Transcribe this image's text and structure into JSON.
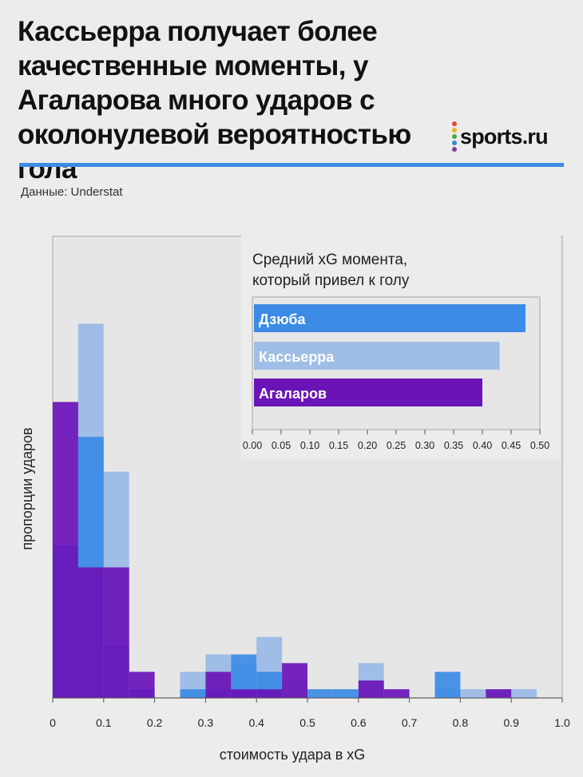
{
  "header": {
    "title": "Кассьерра получает более качественные моменты, у Агаларова много ударов с околонулевой вероятностью гола",
    "logo_text": "sports.ru",
    "logo_colors": [
      "#e8433a",
      "#f2b01e",
      "#3fae49",
      "#2a8ad6",
      "#7c3ea0"
    ],
    "source": "Данные: Understat"
  },
  "colors": {
    "dzyuba": "#3c8be6",
    "kasserra": "#9fbde6",
    "agalarov": "#6a14b8",
    "rule": "#3c8be6"
  },
  "chart_data": [
    {
      "type": "bar",
      "subtype": "overlapping-histogram",
      "xlabel": "стоимость удара в xG",
      "ylabel": "пропорции ударов",
      "xlim": [
        0,
        1.0
      ],
      "bin_width": 0.05,
      "x_ticks": [
        "0",
        "0.1",
        "0.2",
        "0.3",
        "0.4",
        "0.5",
        "0.6",
        "0.7",
        "0.8",
        "0.9",
        "1.0"
      ],
      "series": [
        {
          "name": "Кассьерра",
          "color": "#9fbde6",
          "bins": [
            [
              0.0,
              0.1
            ],
            [
              0.05,
              0.86
            ],
            [
              0.1,
              0.52
            ],
            [
              0.15,
              0.0
            ],
            [
              0.2,
              0.0
            ],
            [
              0.25,
              0.06
            ],
            [
              0.3,
              0.1
            ],
            [
              0.35,
              0.08
            ],
            [
              0.4,
              0.14
            ],
            [
              0.45,
              0.04
            ],
            [
              0.5,
              0.0
            ],
            [
              0.55,
              0.0
            ],
            [
              0.6,
              0.08
            ],
            [
              0.65,
              0.0
            ],
            [
              0.7,
              0.0
            ],
            [
              0.75,
              0.02
            ],
            [
              0.8,
              0.02
            ],
            [
              0.85,
              0.02
            ],
            [
              0.9,
              0.02
            ]
          ]
        },
        {
          "name": "Дзюба",
          "color": "#3c8be6",
          "bins": [
            [
              0.0,
              0.35
            ],
            [
              0.05,
              0.6
            ],
            [
              0.1,
              0.12
            ],
            [
              0.15,
              0.02
            ],
            [
              0.2,
              0.0
            ],
            [
              0.25,
              0.02
            ],
            [
              0.3,
              0.02
            ],
            [
              0.35,
              0.1
            ],
            [
              0.4,
              0.06
            ],
            [
              0.45,
              0.0
            ],
            [
              0.5,
              0.02
            ],
            [
              0.55,
              0.02
            ],
            [
              0.6,
              0.0
            ],
            [
              0.65,
              0.0
            ],
            [
              0.7,
              0.0
            ],
            [
              0.75,
              0.06
            ],
            [
              0.8,
              0.0
            ],
            [
              0.85,
              0.0
            ],
            [
              0.9,
              0.0
            ]
          ]
        },
        {
          "name": "Агаларов",
          "color": "#6a14b8",
          "bins": [
            [
              0.0,
              0.68
            ],
            [
              0.05,
              0.3
            ],
            [
              0.1,
              0.3
            ],
            [
              0.15,
              0.06
            ],
            [
              0.2,
              0.0
            ],
            [
              0.25,
              0.0
            ],
            [
              0.3,
              0.06
            ],
            [
              0.35,
              0.02
            ],
            [
              0.4,
              0.02
            ],
            [
              0.45,
              0.08
            ],
            [
              0.5,
              0.0
            ],
            [
              0.55,
              0.0
            ],
            [
              0.6,
              0.04
            ],
            [
              0.65,
              0.02
            ],
            [
              0.7,
              0.0
            ],
            [
              0.75,
              0.0
            ],
            [
              0.8,
              0.0
            ],
            [
              0.85,
              0.02
            ],
            [
              0.9,
              0.0
            ]
          ]
        }
      ]
    },
    {
      "type": "bar",
      "orientation": "horizontal",
      "title": "Средний xG момента, который привел к голу",
      "title_lines": [
        "Средний xG момента,",
        "который привел к голу"
      ],
      "categories": [
        "Дзюба",
        "Кассьерра",
        "Агаларов"
      ],
      "values": [
        0.475,
        0.43,
        0.4
      ],
      "colors": [
        "#3c8be6",
        "#9fbde6",
        "#6a14b8"
      ],
      "xlim": [
        0,
        0.5
      ],
      "x_ticks": [
        "0.00",
        "0.05",
        "0.10",
        "0.15",
        "0.20",
        "0.25",
        "0.30",
        "0.35",
        "0.40",
        "0.45",
        "0.50"
      ]
    }
  ]
}
